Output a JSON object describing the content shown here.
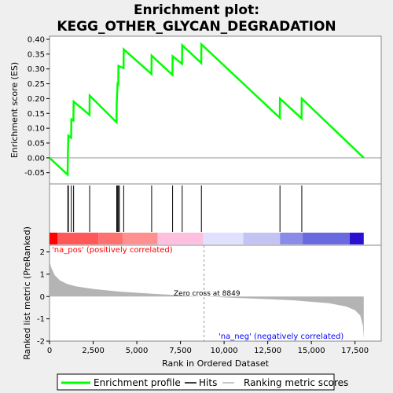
{
  "chart_data": {
    "type": "line",
    "title": "Enrichment plot: KEGG_OTHER_GLYCAN_DEGRADATION",
    "title_lines": [
      "Enrichment plot:",
      "KEGG_OTHER_GLYCAN_DEGRADATION"
    ],
    "xlabel": "Rank in Ordered Dataset",
    "ylabel_top": "Enrichment score (ES)",
    "ylabel_bottom": "Ranked list metric (PreRanked)",
    "x_range": [
      0,
      19000
    ],
    "x_ticks": [
      0,
      2500,
      5000,
      7500,
      10000,
      12500,
      15000,
      17500
    ],
    "x_tick_labels": [
      "0",
      "2,500",
      "5,000",
      "7,500",
      "10,000",
      "12,500",
      "15,000",
      "17,500"
    ],
    "es_range": [
      -0.08,
      0.4
    ],
    "es_ticks": [
      -0.05,
      0.0,
      0.05,
      0.1,
      0.15,
      0.2,
      0.25,
      0.3,
      0.35,
      0.4
    ],
    "es_tick_labels": [
      "-0.05",
      "0.00",
      "0.05",
      "0.10",
      "0.15",
      "0.20",
      "0.25",
      "0.30",
      "0.35",
      "0.40"
    ],
    "metric_range": [
      -2,
      2.3
    ],
    "metric_ticks": [
      -2,
      -1,
      0,
      1,
      2
    ],
    "metric_tick_labels": [
      "-2",
      "-1",
      "0",
      "1",
      "2"
    ],
    "hits": [
      1050,
      1080,
      1250,
      1380,
      2300,
      3850,
      3900,
      3950,
      4000,
      4250,
      5850,
      7050,
      7600,
      8700,
      13200,
      14450
    ],
    "enrichment_profile": [
      {
        "x": 0,
        "y": 0.0
      },
      {
        "x": 1040,
        "y": -0.057
      },
      {
        "x": 1050,
        "y": 0.005
      },
      {
        "x": 1080,
        "y": 0.075
      },
      {
        "x": 1240,
        "y": 0.068
      },
      {
        "x": 1250,
        "y": 0.13
      },
      {
        "x": 1370,
        "y": 0.126
      },
      {
        "x": 1380,
        "y": 0.19
      },
      {
        "x": 2290,
        "y": 0.145
      },
      {
        "x": 2300,
        "y": 0.21
      },
      {
        "x": 3840,
        "y": 0.12
      },
      {
        "x": 3850,
        "y": 0.185
      },
      {
        "x": 3900,
        "y": 0.25
      },
      {
        "x": 3940,
        "y": 0.248
      },
      {
        "x": 3950,
        "y": 0.31
      },
      {
        "x": 4240,
        "y": 0.303
      },
      {
        "x": 4250,
        "y": 0.366
      },
      {
        "x": 5840,
        "y": 0.283
      },
      {
        "x": 5850,
        "y": 0.345
      },
      {
        "x": 7040,
        "y": 0.28
      },
      {
        "x": 7050,
        "y": 0.343
      },
      {
        "x": 7590,
        "y": 0.317
      },
      {
        "x": 7600,
        "y": 0.38
      },
      {
        "x": 8690,
        "y": 0.32
      },
      {
        "x": 8700,
        "y": 0.383
      },
      {
        "x": 13190,
        "y": 0.135
      },
      {
        "x": 13200,
        "y": 0.2
      },
      {
        "x": 14440,
        "y": 0.133
      },
      {
        "x": 14450,
        "y": 0.2
      },
      {
        "x": 18000,
        "y": 0.0
      }
    ],
    "ranked_metric_profile": [
      {
        "x": 0,
        "y": 1.6
      },
      {
        "x": 100,
        "y": 1.3
      },
      {
        "x": 300,
        "y": 0.95
      },
      {
        "x": 600,
        "y": 0.72
      },
      {
        "x": 1000,
        "y": 0.57
      },
      {
        "x": 1500,
        "y": 0.46
      },
      {
        "x": 2500,
        "y": 0.34
      },
      {
        "x": 4000,
        "y": 0.22
      },
      {
        "x": 6000,
        "y": 0.12
      },
      {
        "x": 8000,
        "y": 0.03
      },
      {
        "x": 8849,
        "y": 0.0
      },
      {
        "x": 10000,
        "y": -0.04
      },
      {
        "x": 12000,
        "y": -0.1
      },
      {
        "x": 14000,
        "y": -0.17
      },
      {
        "x": 16000,
        "y": -0.3
      },
      {
        "x": 17000,
        "y": -0.45
      },
      {
        "x": 17500,
        "y": -0.62
      },
      {
        "x": 17800,
        "y": -0.85
      },
      {
        "x": 17950,
        "y": -1.3
      },
      {
        "x": 18000,
        "y": -1.9
      }
    ],
    "color_bar": [
      {
        "from": 0,
        "to": 450,
        "color": "#ff0000"
      },
      {
        "from": 450,
        "to": 2800,
        "color": "#ff5858"
      },
      {
        "from": 2800,
        "to": 4200,
        "color": "#ff7070"
      },
      {
        "from": 4200,
        "to": 6200,
        "color": "#ff9090"
      },
      {
        "from": 6200,
        "to": 8800,
        "color": "#ffc0e0"
      },
      {
        "from": 8800,
        "to": 11100,
        "color": "#e0e0ff"
      },
      {
        "from": 11100,
        "to": 13200,
        "color": "#c4c4f4"
      },
      {
        "from": 13200,
        "to": 14500,
        "color": "#8a8ae8"
      },
      {
        "from": 14500,
        "to": 17200,
        "color": "#6a6ae0"
      },
      {
        "from": 17200,
        "to": 18000,
        "color": "#2a10d0"
      }
    ],
    "zero_cross_label": "Zero cross at 8849",
    "zero_cross_x": 8849,
    "pos_label": "'na_pos' (positively correlated)",
    "neg_label": "'na_neg' (negatively correlated)",
    "legend": [
      "Enrichment profile",
      "Hits",
      "Ranking metric scores"
    ],
    "colors": {
      "profile": "#00ff00",
      "hit": "#000000",
      "metric_fill": "#b4b4b4",
      "pos_label": "#ff0000",
      "neg_label": "#0000ff"
    }
  }
}
